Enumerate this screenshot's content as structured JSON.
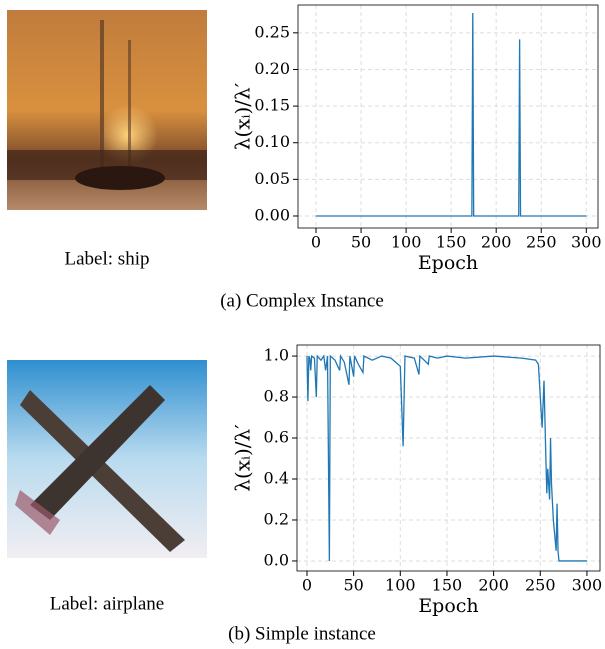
{
  "panels": [
    {
      "image_label": "Label: ship",
      "caption": "(a) Complex Instance"
    },
    {
      "image_label": "Label: airplane",
      "caption": "(b) Simple instance"
    }
  ],
  "chart_data": [
    {
      "type": "line",
      "xlabel": "Epoch",
      "ylabel": "λ(xᵢ)/λ′",
      "color": "#1f77b4",
      "grid": true,
      "x": [
        0,
        173,
        174,
        175,
        225,
        226,
        227,
        300
      ],
      "values": [
        0,
        0,
        0.277,
        0,
        0,
        0.241,
        0,
        0
      ],
      "xlim": [
        -20,
        313
      ],
      "ylim": [
        -0.0164,
        0.288
      ],
      "xticks": [
        0,
        50,
        100,
        150,
        200,
        250,
        300
      ],
      "yticks": [
        {
          "value": 0,
          "label": "0.00"
        },
        {
          "value": 0.05,
          "label": "0.05"
        },
        {
          "value": 0.1,
          "label": "0.10"
        },
        {
          "value": 0.15,
          "label": "0.15"
        },
        {
          "value": 0.2,
          "label": "0.20"
        },
        {
          "value": 0.25,
          "label": "0.25"
        }
      ]
    },
    {
      "type": "line",
      "xlabel": "Epoch",
      "ylabel": "λ(xᵢ)/λ′",
      "color": "#1f77b4",
      "grid": true,
      "x": [
        0,
        1,
        2,
        3,
        4,
        5,
        8,
        10,
        11,
        15,
        18,
        20,
        22,
        24,
        25,
        30,
        35,
        36,
        40,
        45,
        46,
        50,
        51,
        55,
        60,
        61,
        70,
        80,
        90,
        100,
        103,
        105,
        115,
        120,
        121,
        130,
        131,
        140,
        150,
        170,
        200,
        230,
        245,
        248,
        250,
        252,
        254,
        256,
        257,
        258,
        260,
        261,
        262,
        264,
        266,
        267,
        268,
        269,
        270,
        273,
        300
      ],
      "values": [
        1.0,
        0.78,
        1.0,
        0.99,
        0.93,
        1.0,
        0.99,
        0.8,
        1.0,
        0.98,
        1.0,
        0.93,
        1.0,
        0.0,
        1.0,
        0.98,
        0.93,
        1.0,
        0.97,
        0.86,
        1.0,
        0.9,
        1.0,
        0.96,
        0.92,
        1.0,
        0.98,
        1.0,
        0.99,
        0.95,
        0.56,
        1.0,
        0.99,
        0.91,
        1.0,
        0.96,
        1.0,
        0.99,
        1.0,
        0.99,
        1.0,
        0.99,
        0.98,
        0.96,
        0.8,
        0.65,
        0.88,
        0.5,
        0.33,
        0.45,
        0.3,
        0.6,
        0.38,
        0.2,
        0.1,
        0.05,
        0.28,
        0.05,
        0.0,
        0.0,
        0.0
      ],
      "xlim": [
        -10.7,
        314
      ],
      "ylim": [
        -0.049,
        1.054
      ],
      "xticks": [
        0,
        50,
        100,
        150,
        200,
        250,
        300
      ],
      "yticks": [
        {
          "value": 0,
          "label": "0.0"
        },
        {
          "value": 0.2,
          "label": "0.2"
        },
        {
          "value": 0.4,
          "label": "0.4"
        },
        {
          "value": 0.6,
          "label": "0.6"
        },
        {
          "value": 0.8,
          "label": "0.8"
        },
        {
          "value": 1.0,
          "label": "1.0"
        }
      ]
    }
  ]
}
